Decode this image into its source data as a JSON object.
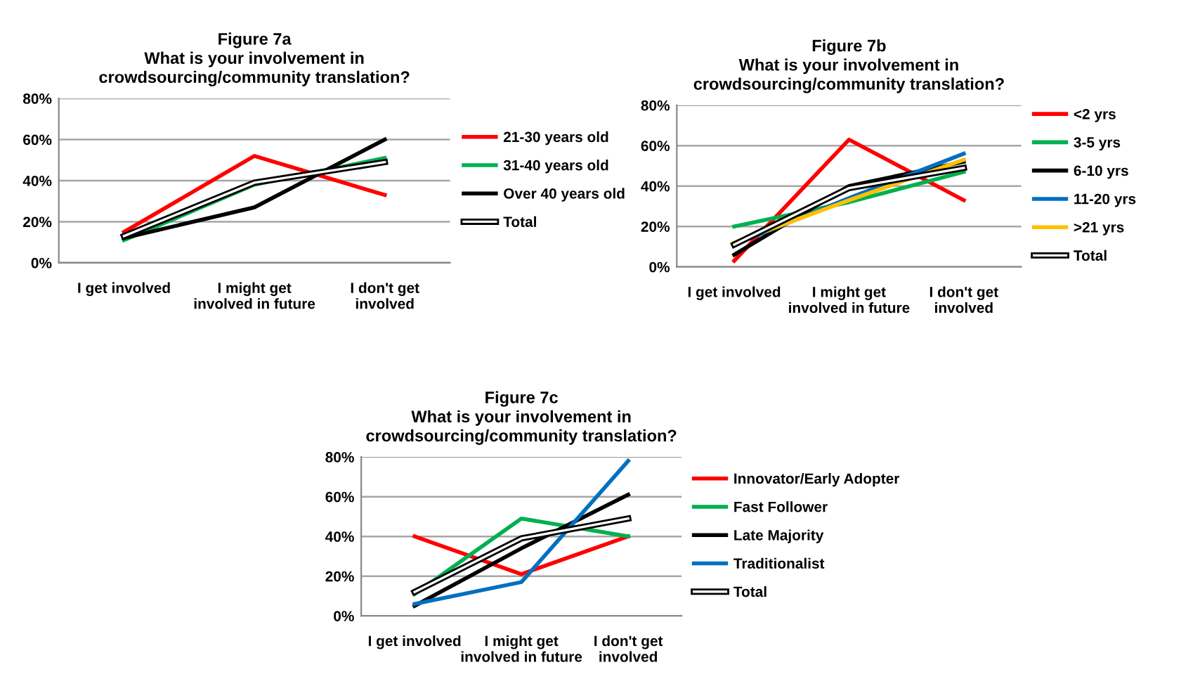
{
  "chart_data": [
    {
      "type": "line",
      "title": "Figure 7a",
      "subtitle": "What is your involvement in\ncrowdsourcing/community translation?",
      "categories": [
        "I get involved",
        "I might get\ninvolved in future",
        "I don't get\ninvolved"
      ],
      "series": [
        {
          "name": "21-30 years old",
          "color": "#ff0000",
          "values": [
            15,
            52,
            33
          ]
        },
        {
          "name": "31-40 years old",
          "color": "#00b050",
          "values": [
            11,
            38,
            51
          ]
        },
        {
          "name": "Over 40 years old",
          "color": "#000000",
          "values": [
            12,
            27,
            60
          ]
        },
        {
          "name": "Total",
          "color": "#000000",
          "values": [
            13,
            39,
            49
          ]
        }
      ],
      "ylim": [
        0,
        80
      ],
      "yticks": [
        {
          "value": 0,
          "label": "0%"
        },
        {
          "value": 20,
          "label": "20%"
        },
        {
          "value": 40,
          "label": "40%"
        },
        {
          "value": 60,
          "label": "60%"
        },
        {
          "value": 80,
          "label": "80%"
        }
      ],
      "grid": "y",
      "legend": "right",
      "marker": "none",
      "line_style": "solid"
    },
    {
      "type": "line",
      "title": "Figure 7b",
      "subtitle": "What is your involvement in\ncrowdsourcing/community translation?",
      "categories": [
        "I get involved",
        "I might get\ninvolved in future",
        "I don't get\ninvolved"
      ],
      "series": [
        {
          "name": "<2 yrs",
          "color": "#ff0000",
          "values": [
            3,
            63,
            33
          ]
        },
        {
          "name": "3-5 yrs",
          "color": "#00b050",
          "values": [
            20,
            32,
            47
          ]
        },
        {
          "name": "6-10 yrs",
          "color": "#000000",
          "values": [
            6,
            40,
            52
          ]
        },
        {
          "name": "11-20 yrs",
          "color": "#0070c0",
          "values": [
            11,
            34,
            56
          ]
        },
        {
          "name": ">21 yrs",
          "color": "#ffc000",
          "values": [
            12,
            33,
            53
          ]
        },
        {
          "name": "Total",
          "color": "#000000",
          "values": [
            11,
            39,
            49
          ]
        }
      ],
      "ylim": [
        0,
        80
      ],
      "yticks": [
        {
          "value": 0,
          "label": "0%"
        },
        {
          "value": 20,
          "label": "20%"
        },
        {
          "value": 40,
          "label": "40%"
        },
        {
          "value": 60,
          "label": "60%"
        },
        {
          "value": 80,
          "label": "80%"
        }
      ],
      "grid": "y",
      "legend": "right",
      "marker": "none",
      "line_style": "solid"
    },
    {
      "type": "line",
      "title": "Figure 7c",
      "subtitle": "What is your involvement in\ncrowdsourcing/community translation?",
      "categories": [
        "I get involved",
        "I might get\ninvolved in future",
        "I don't get\ninvolved"
      ],
      "series": [
        {
          "name": "Innovator/Early Adopter",
          "color": "#ff0000",
          "values": [
            40,
            21,
            40
          ]
        },
        {
          "name": "Fast Follower",
          "color": "#00b050",
          "values": [
            11,
            49,
            40
          ]
        },
        {
          "name": "Late Majority",
          "color": "#000000",
          "values": [
            5,
            34,
            61
          ]
        },
        {
          "name": "Traditionalist",
          "color": "#0070c0",
          "values": [
            6,
            17,
            78
          ]
        },
        {
          "name": "Total",
          "color": "#000000",
          "values": [
            12,
            39,
            49
          ]
        }
      ],
      "ylim": [
        0,
        80
      ],
      "yticks": [
        {
          "value": 0,
          "label": "0%"
        },
        {
          "value": 20,
          "label": "20%"
        },
        {
          "value": 40,
          "label": "40%"
        },
        {
          "value": 60,
          "label": "60%"
        },
        {
          "value": 80,
          "label": "80%"
        }
      ],
      "grid": "y",
      "legend": "right",
      "marker": "none",
      "line_style": "solid"
    }
  ]
}
